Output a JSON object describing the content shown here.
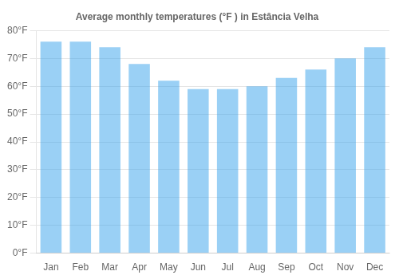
{
  "chart_data": {
    "type": "bar",
    "title": "Average monthly temperatures (°F ) in Estância Velha",
    "categories": [
      "Jan",
      "Feb",
      "Mar",
      "Apr",
      "May",
      "Jun",
      "Jul",
      "Aug",
      "Sep",
      "Oct",
      "Nov",
      "Dec"
    ],
    "values": [
      76,
      76,
      74,
      68,
      62,
      59,
      59,
      60,
      63,
      66,
      70,
      74
    ],
    "ylim": [
      0,
      80
    ],
    "yticks": [
      {
        "value": 0,
        "label": "0°F"
      },
      {
        "value": 10,
        "label": "10°F"
      },
      {
        "value": 20,
        "label": "20°F"
      },
      {
        "value": 30,
        "label": "30°F"
      },
      {
        "value": 40,
        "label": "40°F"
      },
      {
        "value": 50,
        "label": "50°F"
      },
      {
        "value": 60,
        "label": "60°F"
      },
      {
        "value": 70,
        "label": "70°F"
      },
      {
        "value": 80,
        "label": "80°F"
      }
    ],
    "grid": true
  }
}
